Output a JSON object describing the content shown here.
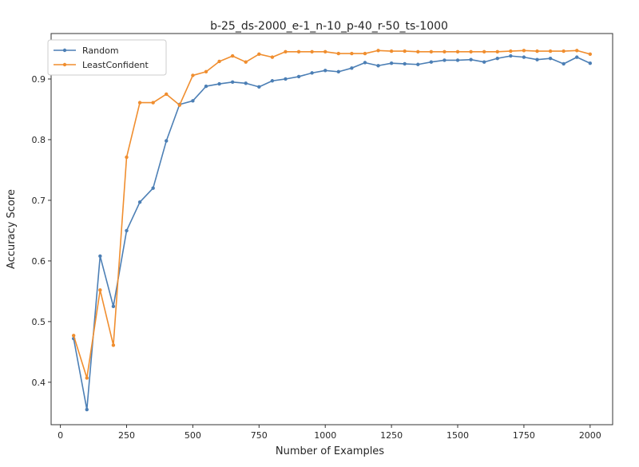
{
  "chart_data": {
    "type": "line",
    "title": "b-25_ds-2000_e-1_n-10_p-40_r-50_ts-1000",
    "xlabel": "Number of Examples",
    "ylabel": "Accuracy Score",
    "xlim": [
      -35,
      2085
    ],
    "ylim": [
      0.33,
      0.975
    ],
    "xticks": [
      0,
      250,
      500,
      750,
      1000,
      1250,
      1500,
      1750,
      2000
    ],
    "yticks": [
      0.4,
      0.5,
      0.6,
      0.7,
      0.8,
      0.9
    ],
    "ytick_labels": [
      "0.4",
      "0.5",
      "0.6",
      "0.7",
      "0.8",
      "0.9"
    ],
    "grid": false,
    "legend_position": "top-left",
    "x": [
      50,
      100,
      150,
      200,
      250,
      300,
      350,
      400,
      450,
      500,
      550,
      600,
      650,
      700,
      750,
      800,
      850,
      900,
      950,
      1000,
      1050,
      1100,
      1150,
      1200,
      1250,
      1300,
      1350,
      1400,
      1450,
      1500,
      1550,
      1600,
      1650,
      1700,
      1750,
      1800,
      1850,
      1900,
      1950,
      2000
    ],
    "series": [
      {
        "name": "Random",
        "color": "#4c7fb5",
        "values": [
          0.472,
          0.355,
          0.608,
          0.525,
          0.65,
          0.697,
          0.72,
          0.798,
          0.858,
          0.864,
          0.888,
          0.892,
          0.895,
          0.893,
          0.887,
          0.897,
          0.9,
          0.904,
          0.91,
          0.914,
          0.912,
          0.918,
          0.927,
          0.922,
          0.926,
          0.925,
          0.924,
          0.928,
          0.931,
          0.931,
          0.932,
          0.928,
          0.934,
          0.938,
          0.936,
          0.932,
          0.934,
          0.925,
          0.936,
          0.926
        ]
      },
      {
        "name": "LeastConfident",
        "color": "#f08e2f",
        "values": [
          0.477,
          0.407,
          0.552,
          0.461,
          0.771,
          0.861,
          0.861,
          0.875,
          0.857,
          0.906,
          0.912,
          0.929,
          0.938,
          0.928,
          0.941,
          0.936,
          0.945,
          0.945,
          0.945,
          0.945,
          0.942,
          0.942,
          0.942,
          0.947,
          0.946,
          0.946,
          0.945,
          0.945,
          0.945,
          0.945,
          0.945,
          0.945,
          0.945,
          0.946,
          0.947,
          0.946,
          0.946,
          0.946,
          0.947,
          0.941
        ]
      }
    ]
  }
}
